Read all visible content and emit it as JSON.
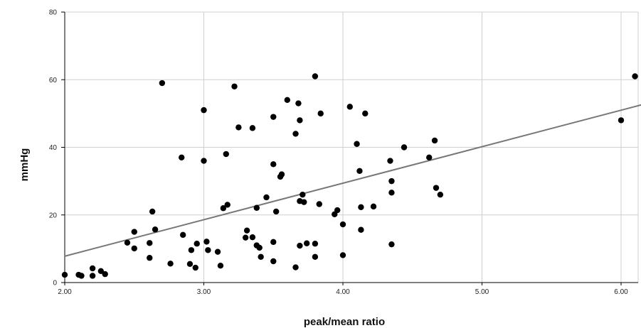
{
  "chart_data": {
    "type": "scatter",
    "title": "",
    "xlabel": "peak/mean ratio",
    "ylabel": "mmHg",
    "xlim": [
      2.0,
      6.15
    ],
    "ylim": [
      0,
      80
    ],
    "x_ticks": [
      2.0,
      3.0,
      4.0,
      5.0,
      6.0
    ],
    "x_tick_labels": [
      "2.00",
      "3.00",
      "4.00",
      "5.00",
      "6.00"
    ],
    "y_ticks": [
      0,
      20,
      40,
      60,
      80
    ],
    "y_tick_labels": [
      "0",
      "20",
      "40",
      "60",
      "80"
    ],
    "grid": true,
    "colors": {
      "point": "#000000",
      "fit_line": "#777777",
      "grid": "#cfcfcf",
      "axis": "#000000"
    },
    "fit_line": {
      "x": [
        2.0,
        6.15
      ],
      "y": [
        7.8,
        52.6
      ]
    },
    "points": [
      [
        2.0,
        2.3
      ],
      [
        2.1,
        2.3
      ],
      [
        2.12,
        2.0
      ],
      [
        2.2,
        4.2
      ],
      [
        2.2,
        2.0
      ],
      [
        2.26,
        3.4
      ],
      [
        2.29,
        2.5
      ],
      [
        2.45,
        11.8
      ],
      [
        2.5,
        15.0
      ],
      [
        2.5,
        10.1
      ],
      [
        2.61,
        11.7
      ],
      [
        2.61,
        7.3
      ],
      [
        2.63,
        21.0
      ],
      [
        2.65,
        15.7
      ],
      [
        2.7,
        59.0
      ],
      [
        2.76,
        5.6
      ],
      [
        2.84,
        37.0
      ],
      [
        2.85,
        14.1
      ],
      [
        2.9,
        5.5
      ],
      [
        2.91,
        9.6
      ],
      [
        2.94,
        4.4
      ],
      [
        2.95,
        11.5
      ],
      [
        3.0,
        51.0
      ],
      [
        3.0,
        36.0
      ],
      [
        3.02,
        12.1
      ],
      [
        3.03,
        9.6
      ],
      [
        3.1,
        9.1
      ],
      [
        3.12,
        5.0
      ],
      [
        3.14,
        22.0
      ],
      [
        3.16,
        38.0
      ],
      [
        3.17,
        23.0
      ],
      [
        3.22,
        58.0
      ],
      [
        3.25,
        45.9
      ],
      [
        3.3,
        13.3
      ],
      [
        3.31,
        15.4
      ],
      [
        3.35,
        45.7
      ],
      [
        3.35,
        13.4
      ],
      [
        3.38,
        22.1
      ],
      [
        3.38,
        11.0
      ],
      [
        3.4,
        10.3
      ],
      [
        3.41,
        7.6
      ],
      [
        3.45,
        25.2
      ],
      [
        3.5,
        49.0
      ],
      [
        3.5,
        35.0
      ],
      [
        3.5,
        12.0
      ],
      [
        3.5,
        6.3
      ],
      [
        3.52,
        21.0
      ],
      [
        3.55,
        31.3
      ],
      [
        3.56,
        32.0
      ],
      [
        3.6,
        54.0
      ],
      [
        3.66,
        44.0
      ],
      [
        3.66,
        4.5
      ],
      [
        3.68,
        53.0
      ],
      [
        3.69,
        48.0
      ],
      [
        3.69,
        24.1
      ],
      [
        3.69,
        10.9
      ],
      [
        3.71,
        26.0
      ],
      [
        3.72,
        23.8
      ],
      [
        3.74,
        11.6
      ],
      [
        3.8,
        61.0
      ],
      [
        3.8,
        11.5
      ],
      [
        3.8,
        7.6
      ],
      [
        3.83,
        23.2
      ],
      [
        3.84,
        50.0
      ],
      [
        3.94,
        20.2
      ],
      [
        3.96,
        21.4
      ],
      [
        4.0,
        17.2
      ],
      [
        4.0,
        8.1
      ],
      [
        4.05,
        52.0
      ],
      [
        4.1,
        41.0
      ],
      [
        4.12,
        33.0
      ],
      [
        4.13,
        22.3
      ],
      [
        4.13,
        15.6
      ],
      [
        4.16,
        50.0
      ],
      [
        4.22,
        22.5
      ],
      [
        4.34,
        36.0
      ],
      [
        4.35,
        30.0
      ],
      [
        4.35,
        26.6
      ],
      [
        4.35,
        11.3
      ],
      [
        4.44,
        40.0
      ],
      [
        4.62,
        37.0
      ],
      [
        4.66,
        42.0
      ],
      [
        4.67,
        28.0
      ],
      [
        4.7,
        26.0
      ],
      [
        6.0,
        48.0
      ],
      [
        6.1,
        61.0
      ]
    ]
  }
}
